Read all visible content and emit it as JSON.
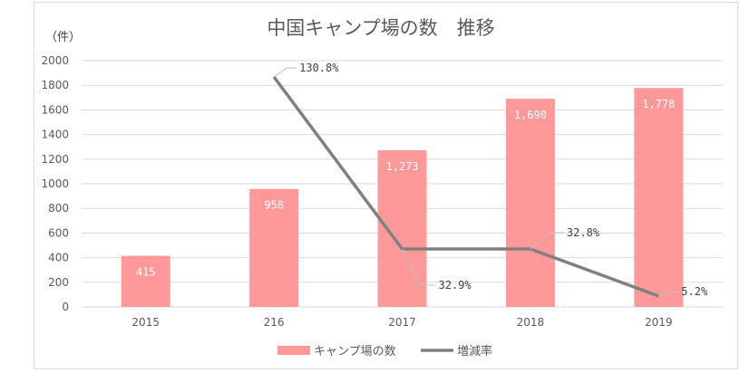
{
  "chart_data": {
    "type": "bar",
    "title": "中国キャンプ場の数　推移",
    "y_unit_label": "（件）",
    "categories": [
      "2015",
      "216",
      "2017",
      "2018",
      "2019"
    ],
    "ylim": [
      0,
      2000
    ],
    "yticks": [
      0,
      200,
      400,
      600,
      800,
      1000,
      1200,
      1400,
      1600,
      1800,
      2000
    ],
    "grid": true,
    "legend_position": "bottom",
    "series": [
      {
        "name": "キャンプ場の数",
        "type": "bar",
        "color": "#ff9999",
        "values": [
          415,
          958,
          1273,
          1690,
          1778
        ],
        "data_labels": [
          "415",
          "958",
          "1,273",
          "1,690",
          "1,778"
        ]
      },
      {
        "name": "増減率",
        "type": "line",
        "color": "#808080",
        "values": [
          null,
          130.8,
          32.9,
          32.8,
          5.2
        ],
        "data_labels": [
          "",
          "130.8%",
          "32.9%",
          "32.8%",
          "5.2%"
        ]
      }
    ]
  }
}
